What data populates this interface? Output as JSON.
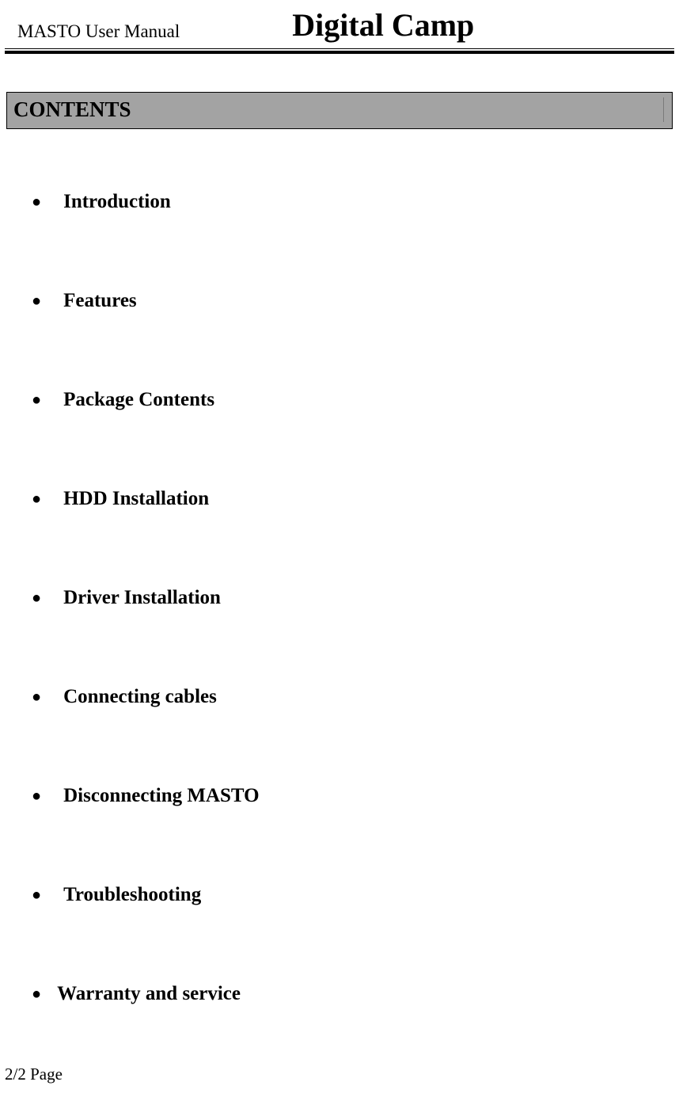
{
  "header": {
    "left": "MASTO User Manual",
    "right": "Digital Camp"
  },
  "contents_heading": "CONTENTS",
  "toc": [
    "Introduction",
    "Features",
    "Package Contents",
    "HDD Installation",
    "Driver Installation",
    "Connecting cables",
    "Disconnecting MASTO",
    "Troubleshooting",
    "Warranty and service"
  ],
  "footer": "2/2 Page",
  "style": {
    "page_bg": "#ffffff",
    "text_color": "#000000",
    "contents_bg": "#a3a3a3",
    "contents_border": "#000000",
    "rule_color": "#000000",
    "header_left_fontsize": 23,
    "header_right_fontsize": 40,
    "contents_fontsize": 27,
    "toc_fontsize": 25,
    "footer_fontsize": 21,
    "toc_item_spacing": 97,
    "bullet_char": "●"
  }
}
